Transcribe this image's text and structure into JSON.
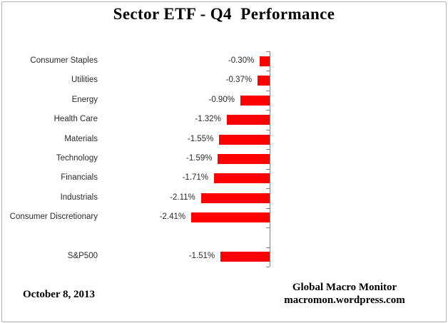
{
  "chart_data": {
    "type": "bar",
    "orientation": "horizontal",
    "title": "Sector ETF - Q4  Performance",
    "categories": [
      "Consumer Staples",
      "Utilities",
      "Energy",
      "Health Care",
      "Materials",
      "Technology",
      "Financials",
      "Industrials",
      "Consumer Discretionary",
      "",
      "S&P500"
    ],
    "values": [
      -0.3,
      -0.37,
      -0.9,
      -1.32,
      -1.55,
      -1.59,
      -1.71,
      -2.11,
      -2.41,
      null,
      -1.51
    ],
    "value_labels": [
      "-0.30%",
      "-0.37%",
      "-0.90%",
      "-1.32%",
      "-1.55%",
      "-1.59%",
      "-1.71%",
      "-2.11%",
      "-2.41%",
      "",
      "-1.51%"
    ],
    "xlim": [
      -5,
      0
    ],
    "bar_color": "#ff0000",
    "axis_color": "#808080",
    "grid": false,
    "legend": false
  },
  "footer": {
    "date": "October 8, 2013",
    "credit_line1": "Global Macro Monitor",
    "credit_line2": "macromon.wordpress.com"
  }
}
